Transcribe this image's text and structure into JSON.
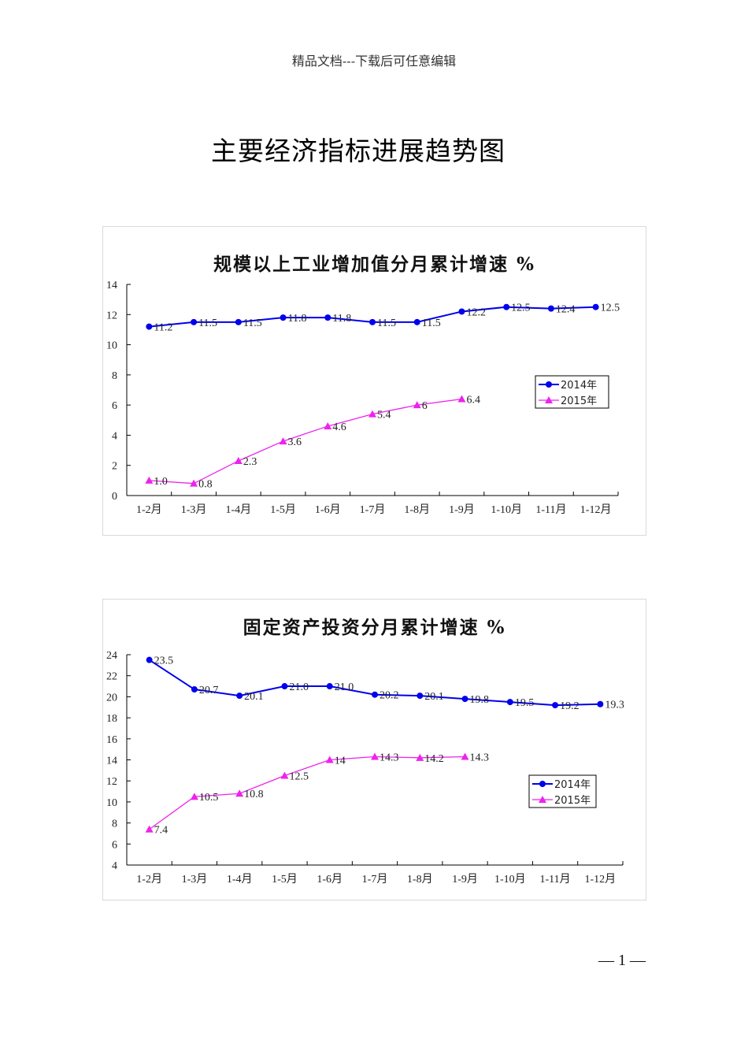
{
  "page": {
    "header_note": "精品文档---下载后可任意编辑",
    "title": "主要经济指标进展趋势图",
    "page_number": "— 1 —"
  },
  "colors": {
    "series_2014": "#0000ee",
    "series_2015": "#ee22ee",
    "axis": "#000000"
  },
  "chart_data": [
    {
      "type": "line",
      "title": "规模以上工业增加值分月累计增速 %",
      "xlabel": "",
      "ylabel": "",
      "ylim": [
        0,
        14
      ],
      "yticks": [
        0,
        2,
        4,
        6,
        8,
        10,
        12,
        14
      ],
      "grid": false,
      "legend_position": "right-middle",
      "categories": [
        "1-2月",
        "1-3月",
        "1-4月",
        "1-5月",
        "1-6月",
        "1-7月",
        "1-8月",
        "1-9月",
        "1-10月",
        "1-11月",
        "1-12月"
      ],
      "series": [
        {
          "name": "2014年",
          "marker": "circle",
          "values": [
            11.2,
            11.5,
            11.5,
            11.8,
            11.8,
            11.5,
            11.5,
            12.2,
            12.5,
            12.4,
            12.5
          ],
          "labels": [
            "11.2",
            "11.5",
            "11.5",
            "11.8",
            "11.8",
            "11.5",
            "11.5",
            "12.2",
            "12.5",
            "12.4",
            "12.5"
          ]
        },
        {
          "name": "2015年",
          "marker": "triangle",
          "values": [
            1.0,
            0.8,
            2.3,
            3.6,
            4.6,
            5.4,
            6.0,
            6.4
          ],
          "labels": [
            "1.0",
            "0.8",
            "2.3",
            "3.6",
            "4.6",
            "5.4",
            "6",
            "6.4"
          ]
        }
      ]
    },
    {
      "type": "line",
      "title": "固定资产投资分月累计增速 %",
      "xlabel": "",
      "ylabel": "",
      "ylim": [
        4,
        24
      ],
      "yticks": [
        4,
        6,
        8,
        10,
        12,
        14,
        16,
        18,
        20,
        22,
        24
      ],
      "grid": false,
      "legend_position": "right-middle",
      "categories": [
        "1-2月",
        "1-3月",
        "1-4月",
        "1-5月",
        "1-6月",
        "1-7月",
        "1-8月",
        "1-9月",
        "1-10月",
        "1-11月",
        "1-12月"
      ],
      "series": [
        {
          "name": "2014年",
          "marker": "circle",
          "values": [
            23.5,
            20.7,
            20.1,
            21.0,
            21.0,
            20.2,
            20.1,
            19.8,
            19.5,
            19.2,
            19.3
          ],
          "labels": [
            "23.5",
            "20.7",
            "20.1",
            "21.0",
            "21.0",
            "20.2",
            "20.1",
            "19.8",
            "19.5",
            "19.2",
            "19.3"
          ]
        },
        {
          "name": "2015年",
          "marker": "triangle",
          "values": [
            7.4,
            10.5,
            10.8,
            12.5,
            14.0,
            14.3,
            14.2,
            14.3
          ],
          "labels": [
            "7.4",
            "10.5",
            "10.8",
            "12.5",
            "14",
            "14.3",
            "14.2",
            "14.3"
          ]
        }
      ]
    }
  ]
}
